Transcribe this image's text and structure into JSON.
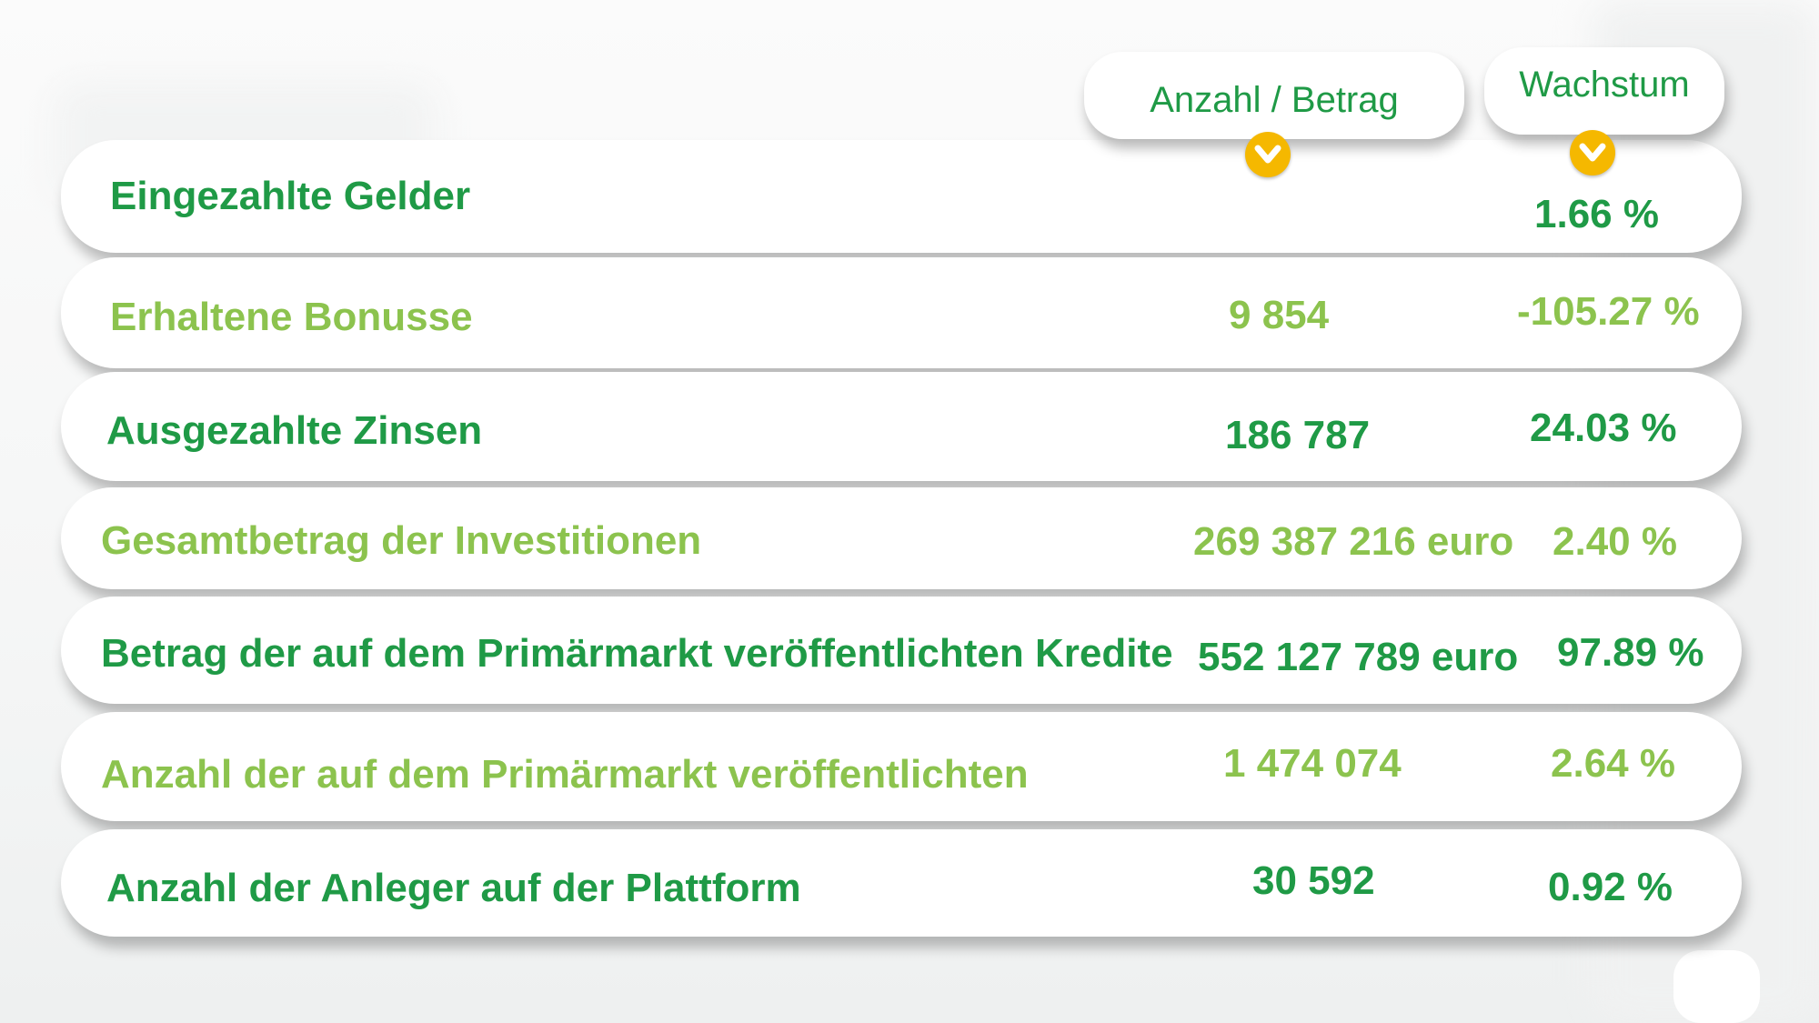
{
  "header": {
    "count_label": "Anzahl / Betrag",
    "growth_label": "Wachstum"
  },
  "colors": {
    "dark_green": "#1f9a46",
    "light_green": "#8cc34e",
    "accent_yellow": "#f5b800"
  },
  "rows": [
    {
      "label": "Eingezahlte Gelder",
      "value": "",
      "growth": "1.66 %"
    },
    {
      "label": "Erhaltene Bonusse",
      "value": "9 854",
      "growth": "-105.27 %"
    },
    {
      "label": "Ausgezahlte Zinsen",
      "value": "186 787",
      "growth": "24.03 %"
    },
    {
      "label": "Gesamtbetrag der Investitionen",
      "value": "269 387 216 euro",
      "growth": "2.40 %"
    },
    {
      "label": "Betrag der auf dem Primärmarkt veröffentlichten Kredite",
      "value": "552 127 789 euro",
      "growth": "97.89 %"
    },
    {
      "label": "Anzahl der auf dem Primärmarkt veröffentlichten",
      "value": "1 474 074",
      "growth": "2.64 %"
    },
    {
      "label": "Anzahl der Anleger auf der Plattform",
      "value": "30 592",
      "growth": "0.92 %"
    }
  ]
}
